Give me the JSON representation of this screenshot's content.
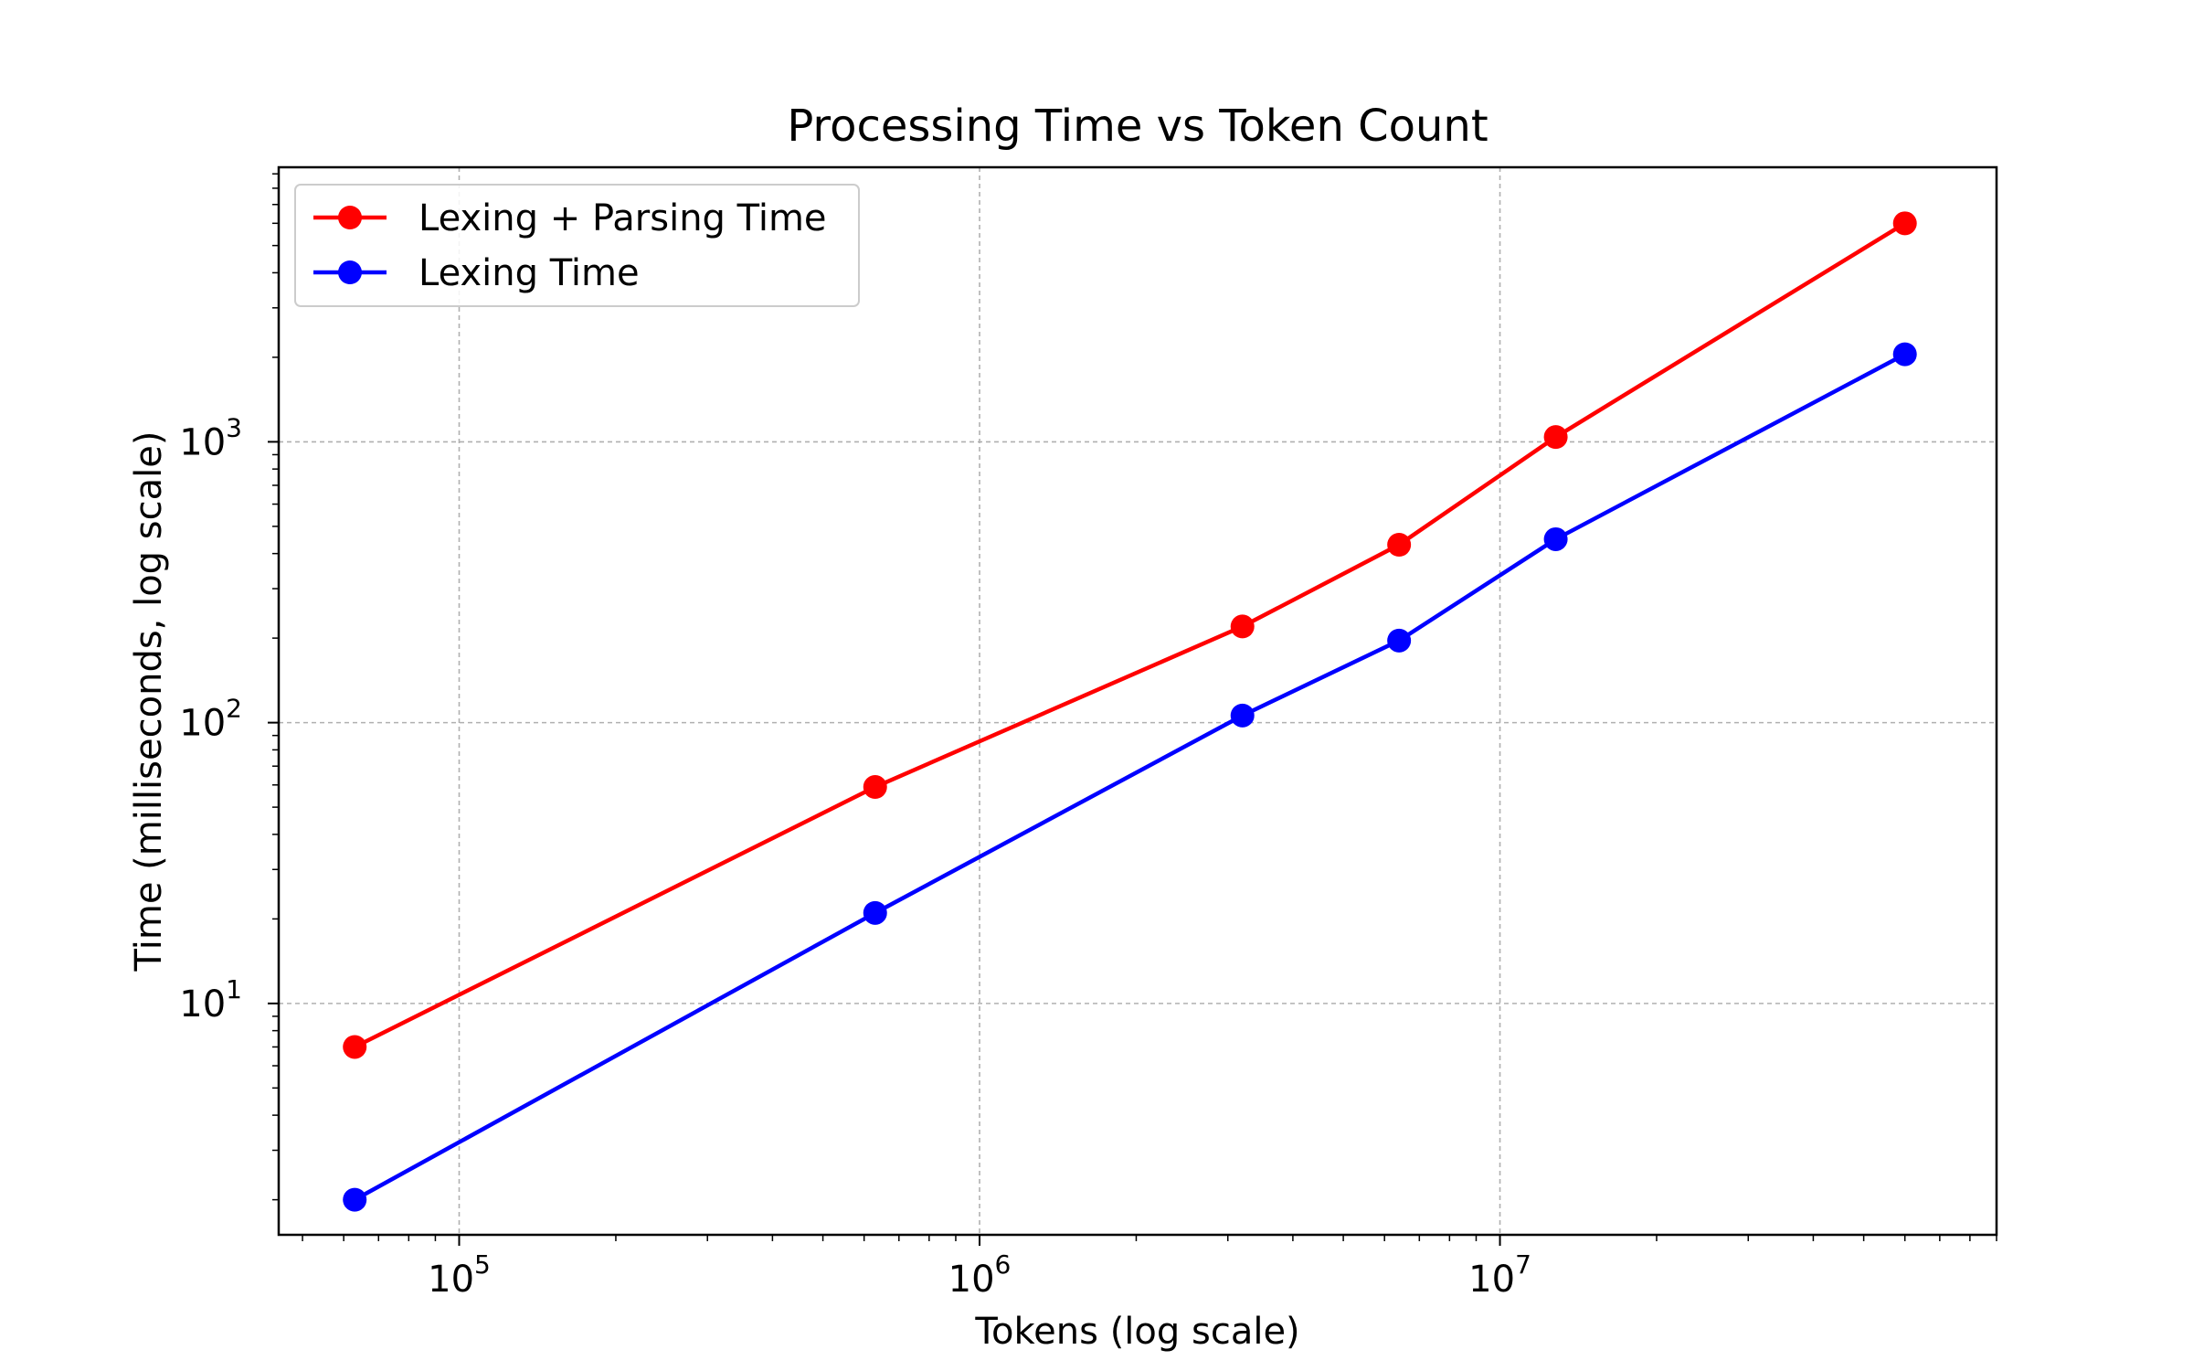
{
  "chart_data": {
    "type": "line",
    "title": "Processing Time vs Token Count",
    "xlabel": "Tokens (log scale)",
    "ylabel": "Time (milliseconds, log scale)",
    "xscale": "log",
    "yscale": "log",
    "xlim": [
      45000,
      90000000
    ],
    "ylim": [
      1.5,
      9500
    ],
    "grid": true,
    "legend_position": "upper-left",
    "x": [
      63000,
      630000,
      3200000,
      6400000,
      12800000,
      60000000
    ],
    "series": [
      {
        "name": "Lexing + Parsing Time",
        "color": "#ff0000",
        "values": [
          7,
          59,
          220,
          430,
          1040,
          6000
        ]
      },
      {
        "name": "Lexing Time",
        "color": "#0000ff",
        "values": [
          2,
          21,
          106,
          196,
          450,
          2050
        ]
      }
    ],
    "x_ticks": [
      {
        "value": 100000,
        "base": "10",
        "exp": "5"
      },
      {
        "value": 1000000,
        "base": "10",
        "exp": "6"
      },
      {
        "value": 10000000,
        "base": "10",
        "exp": "7"
      }
    ],
    "y_ticks": [
      {
        "value": 10,
        "base": "10",
        "exp": "1"
      },
      {
        "value": 100,
        "base": "10",
        "exp": "2"
      },
      {
        "value": 1000,
        "base": "10",
        "exp": "3"
      }
    ]
  }
}
